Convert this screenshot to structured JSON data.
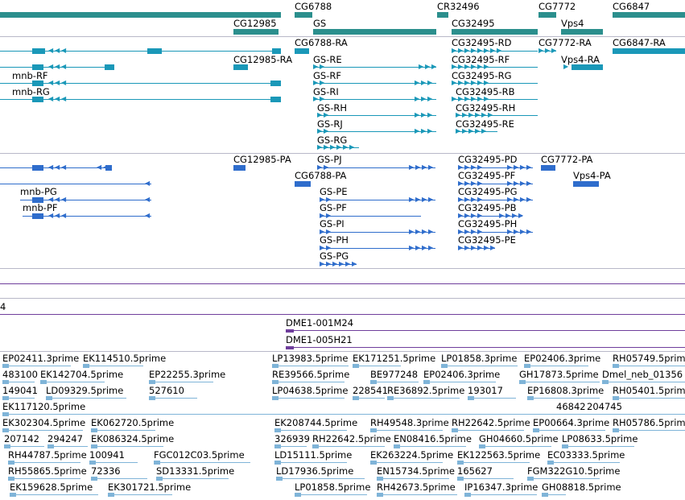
{
  "colors": {
    "gene": "#2b8f8d",
    "mrna_a": "#1a98b8",
    "mrna_b": "#2f6dcc",
    "clone": "#6f3e9c",
    "est": "#7fb4d8",
    "divider": "#b8b8c8"
  },
  "genes": [
    "CG6788",
    "CR32496",
    "CG7772",
    "CG6847",
    "CG12985",
    "GS",
    "CG32495",
    "Vps4"
  ],
  "transcripts_a": [
    "CG6788-RA",
    "CG32495-RD",
    "CG7772-RA",
    "CG6847-RA",
    "CG12985-RA",
    "GS-RE",
    "CG32495-RF",
    "Vps4-RA",
    "mnb-RF",
    "GS-RF",
    "CG32495-RG",
    "mnb-RG",
    "GS-RI",
    "CG32495-RB",
    "GS-RH",
    "CG32495-RH",
    "GS-RJ",
    "CG32495-RE",
    "GS-RG"
  ],
  "transcripts_b": [
    "CG12985-PA",
    "GS-PJ",
    "CG32495-PD",
    "CG7772-PA",
    "CG6788-PA",
    "CG32495-PF",
    "Vps4-PA",
    "mnb-PG",
    "GS-PE",
    "CG32495-PG",
    "mnb-PF",
    "GS-PF",
    "CG32495-PB",
    "GS-PI",
    "CG32495-PH",
    "GS-PH",
    "CG32495-PE",
    "GS-PG"
  ],
  "track_edge_label": "4",
  "clones": [
    "DME1-001M24",
    "DME1-005H21"
  ],
  "ests": [
    "EP02411.3prime",
    "EK114510.5prime",
    "LP13983.5prime",
    "EK171251.5prime",
    "LP01858.3prime",
    "EP02406.3prime",
    "RH05749.5prime",
    "483100",
    "EK142704.5prime",
    "EP22255.3prime",
    "RE39566.5prime",
    "BE977248",
    "EP02406.3prime",
    "GH17873.5prime",
    "Dmel_neb_01356",
    "149041",
    "LD09329.5prime",
    "527610",
    "LP04638.5prime",
    "228541",
    "RE36892.5prime",
    "193017",
    "EP16808.3prime",
    "RH05401.5prime",
    "EK117120.5prime",
    "46842",
    "204745",
    "EK302304.5prime",
    "EK062720.5prime",
    "EK208744.5prime",
    "RH49548.3prime",
    "RH22642.5prime",
    "EP00664.3prime",
    "RH05786.5prime",
    "207142",
    "294247",
    "EK086324.5prime",
    "326939",
    "RH22642.5prime",
    "EN08416.5prime",
    "GH04660.5prime",
    "LP08633.5prime",
    "RH44787.5prime",
    "100941",
    "FGC012C03.5prime",
    "LD15111.5prime",
    "EK263224.5prime",
    "EK122563.5prime",
    "EC03333.5prime",
    "RH55865.5prime",
    "72336",
    "SD13331.5prime",
    "LD17936.5prime",
    "EN15734.5prime",
    "165627",
    "FGM322G10.5prime",
    "EK159628.5prime",
    "EK301721.5prime",
    "LP01858.5prime",
    "RH42673.5prime",
    "IP16347.3prime",
    "GH08818.5prime"
  ]
}
